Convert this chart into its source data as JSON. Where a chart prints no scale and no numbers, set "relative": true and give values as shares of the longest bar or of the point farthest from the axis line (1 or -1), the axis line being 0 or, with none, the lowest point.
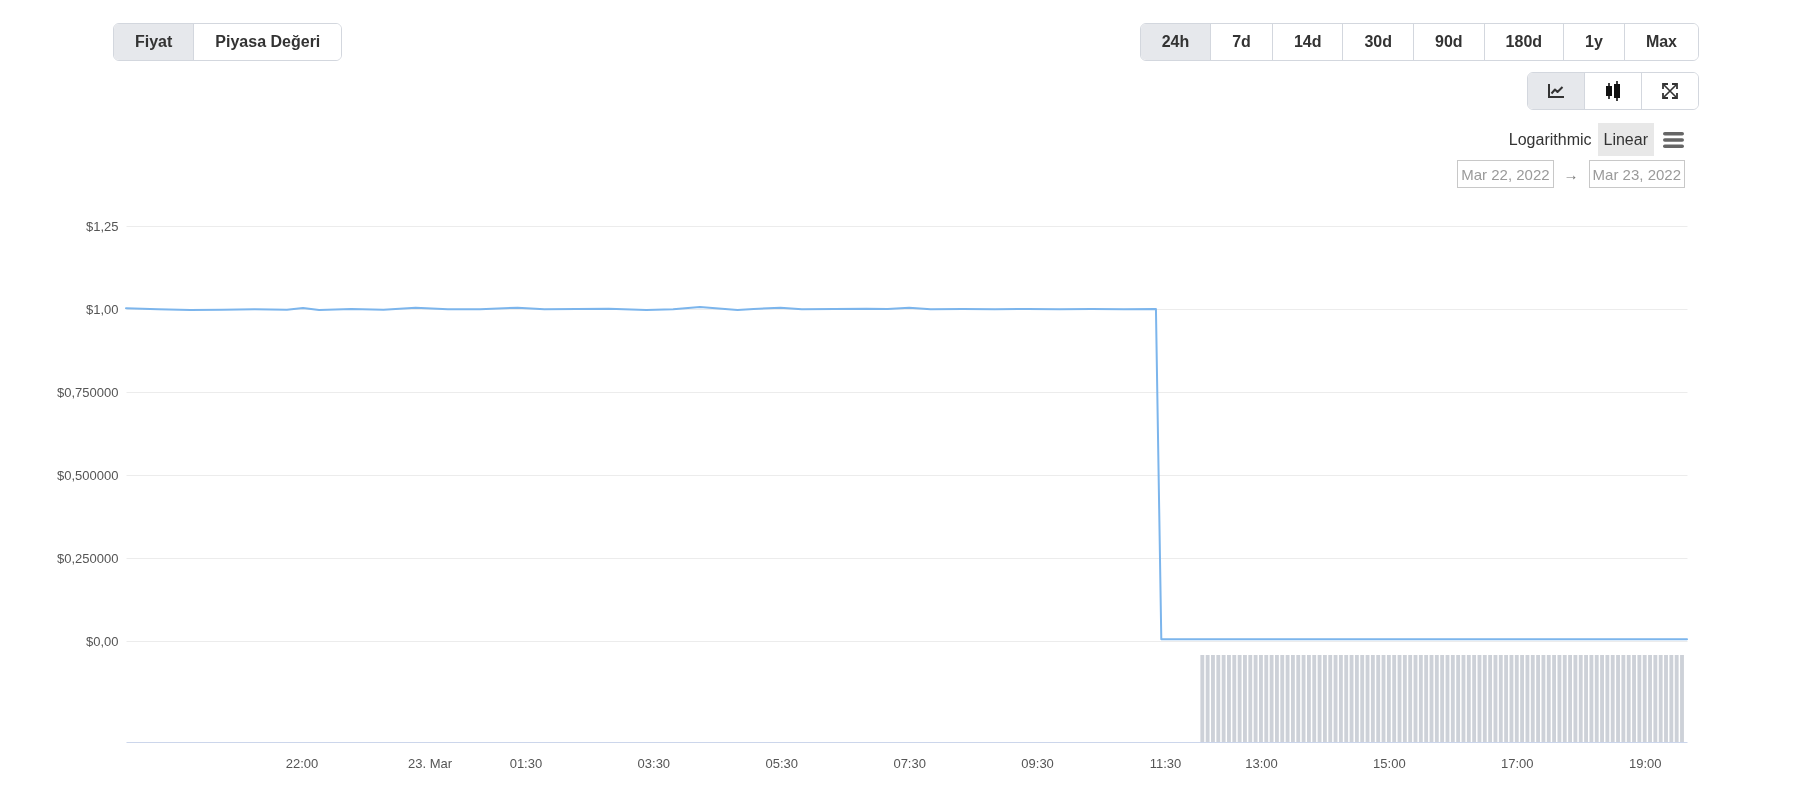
{
  "chart_data": [
    {
      "type": "line",
      "x": [
        "2022-03-22T19:20",
        "2022-03-22T19:50",
        "2022-03-22T20:20",
        "2022-03-22T20:50",
        "2022-03-22T21:20",
        "2022-03-22T21:50",
        "2022-03-22T22:05",
        "2022-03-22T22:20",
        "2022-03-22T22:50",
        "2022-03-22T23:20",
        "2022-03-22T23:50",
        "2022-03-23T00:20",
        "2022-03-23T00:50",
        "2022-03-23T01:25",
        "2022-03-23T01:50",
        "2022-03-23T02:20",
        "2022-03-23T02:50",
        "2022-03-23T03:25",
        "2022-03-23T03:50",
        "2022-03-23T04:15",
        "2022-03-23T04:50",
        "2022-03-23T05:05",
        "2022-03-23T05:30",
        "2022-03-23T05:50",
        "2022-03-23T06:20",
        "2022-03-23T06:50",
        "2022-03-23T07:10",
        "2022-03-23T07:30",
        "2022-03-23T07:50",
        "2022-03-23T08:20",
        "2022-03-23T08:50",
        "2022-03-23T09:20",
        "2022-03-23T09:50",
        "2022-03-23T10:20",
        "2022-03-23T10:50",
        "2022-03-23T11:20",
        "2022-03-23T11:25",
        "2022-03-23T13:00",
        "2022-03-23T15:00",
        "2022-03-23T17:00",
        "2022-03-23T19:35"
      ],
      "values": [
        1.002,
        0.999,
        0.997,
        0.998,
        0.999,
        0.998,
        1.003,
        0.997,
        1,
        0.998,
        1.004,
        0.999,
        0.999,
        1.004,
        0.999,
        1,
        1.001,
        0.997,
        0.999,
        1.006,
        0.997,
        1,
        1.004,
        0.999,
        1,
        1.001,
        1,
        1.004,
        0.999,
        1,
        0.999,
        1,
        0.999,
        1,
        0.999,
        1,
        0.005,
        0.005,
        0.005,
        0.005,
        0.005
      ],
      "color": "#7cb5ec",
      "xlim": [
        "2022-03-22T19:20",
        "2022-03-23T19:35"
      ],
      "ylim": [
        0,
        1.25
      ],
      "yticks": [
        {
          "value": 0,
          "label": "$0,00"
        },
        {
          "value": 0.25,
          "label": "$0,250000"
        },
        {
          "value": 0.5,
          "label": "$0,500000"
        },
        {
          "value": 0.75,
          "label": "$0,750000"
        },
        {
          "value": 1,
          "label": "$1,00"
        },
        {
          "value": 1.25,
          "label": "$1,25"
        }
      ],
      "grid": "y",
      "tick_labels": "y",
      "annotations": [
        "Fiyat",
        "Piyasa Değeri",
        "24h",
        "7d",
        "14d",
        "30d",
        "90d",
        "180d",
        "1y",
        "Max",
        "Logarithmic",
        "Linear",
        "Mar 22, 2022",
        "→",
        "Mar 23, 2022"
      ]
    },
    {
      "type": "bar",
      "relative": true,
      "x": [
        "2022-03-23T12:05",
        "2022-03-23T12:10",
        "2022-03-23T12:15",
        "2022-03-23T12:20",
        "2022-03-23T12:25",
        "2022-03-23T12:30",
        "2022-03-23T12:35",
        "2022-03-23T12:40",
        "2022-03-23T12:45",
        "2022-03-23T12:50",
        "2022-03-23T12:55",
        "2022-03-23T13:00",
        "2022-03-23T13:05",
        "2022-03-23T13:10",
        "2022-03-23T13:15",
        "2022-03-23T13:20",
        "2022-03-23T13:25",
        "2022-03-23T13:30",
        "2022-03-23T13:35",
        "2022-03-23T13:40",
        "2022-03-23T13:45",
        "2022-03-23T13:50",
        "2022-03-23T13:55",
        "2022-03-23T14:00",
        "2022-03-23T14:05",
        "2022-03-23T14:10",
        "2022-03-23T14:15",
        "2022-03-23T14:20",
        "2022-03-23T14:25",
        "2022-03-23T14:30",
        "2022-03-23T14:35",
        "2022-03-23T14:40",
        "2022-03-23T14:45",
        "2022-03-23T14:50",
        "2022-03-23T14:55",
        "2022-03-23T15:00",
        "2022-03-23T15:05",
        "2022-03-23T15:10",
        "2022-03-23T15:15",
        "2022-03-23T15:20",
        "2022-03-23T15:25",
        "2022-03-23T15:30",
        "2022-03-23T15:35",
        "2022-03-23T15:40",
        "2022-03-23T15:45",
        "2022-03-23T15:50",
        "2022-03-23T15:55",
        "2022-03-23T16:00",
        "2022-03-23T16:05",
        "2022-03-23T16:10",
        "2022-03-23T16:15",
        "2022-03-23T16:20",
        "2022-03-23T16:25",
        "2022-03-23T16:30",
        "2022-03-23T16:35",
        "2022-03-23T16:40",
        "2022-03-23T16:45",
        "2022-03-23T16:50",
        "2022-03-23T16:55",
        "2022-03-23T17:00",
        "2022-03-23T17:05",
        "2022-03-23T17:10",
        "2022-03-23T17:15",
        "2022-03-23T17:20",
        "2022-03-23T17:25",
        "2022-03-23T17:30",
        "2022-03-23T17:35",
        "2022-03-23T17:40",
        "2022-03-23T17:45",
        "2022-03-23T17:50",
        "2022-03-23T17:55",
        "2022-03-23T18:00",
        "2022-03-23T18:05",
        "2022-03-23T18:10",
        "2022-03-23T18:15",
        "2022-03-23T18:20",
        "2022-03-23T18:25",
        "2022-03-23T18:30",
        "2022-03-23T18:35",
        "2022-03-23T18:40",
        "2022-03-23T18:45",
        "2022-03-23T18:50",
        "2022-03-23T18:55",
        "2022-03-23T19:00",
        "2022-03-23T19:05",
        "2022-03-23T19:10",
        "2022-03-23T19:15",
        "2022-03-23T19:20",
        "2022-03-23T19:25",
        "2022-03-23T19:30",
        "2022-03-23T19:35"
      ],
      "values": [
        1,
        1,
        1,
        1,
        1,
        1,
        1,
        1,
        1,
        1,
        1,
        1,
        1,
        1,
        1,
        1,
        1,
        1,
        1,
        1,
        1,
        1,
        1,
        1,
        1,
        1,
        1,
        1,
        1,
        1,
        1,
        1,
        1,
        1,
        1,
        1,
        1,
        1,
        1,
        1,
        1,
        1,
        1,
        1,
        1,
        1,
        1,
        1,
        1,
        1,
        1,
        1,
        1,
        1,
        1,
        1,
        1,
        1,
        1,
        1,
        1,
        1,
        1,
        1,
        1,
        1,
        1,
        1,
        1,
        1,
        1,
        1,
        1,
        1,
        1,
        1,
        1,
        1,
        1,
        1,
        1,
        1,
        1,
        1,
        1,
        1,
        1,
        1,
        1,
        1,
        1
      ],
      "color": "#cdd1d8",
      "xlim": [
        "2022-03-22T19:20",
        "2022-03-23T19:35"
      ],
      "xticks": [
        {
          "value": "2022-03-22T22:00",
          "label": "22:00"
        },
        {
          "value": "2022-03-23T00:00",
          "label": "23. Mar"
        },
        {
          "value": "2022-03-23T01:30",
          "label": "01:30"
        },
        {
          "value": "2022-03-23T03:30",
          "label": "03:30"
        },
        {
          "value": "2022-03-23T05:30",
          "label": "05:30"
        },
        {
          "value": "2022-03-23T07:30",
          "label": "07:30"
        },
        {
          "value": "2022-03-23T09:30",
          "label": "09:30"
        },
        {
          "value": "2022-03-23T11:30",
          "label": "11:30"
        },
        {
          "value": "2022-03-23T13:00",
          "label": "13:00"
        },
        {
          "value": "2022-03-23T15:00",
          "label": "15:00"
        },
        {
          "value": "2022-03-23T17:00",
          "label": "17:00"
        },
        {
          "value": "2022-03-23T19:00",
          "label": "19:00"
        }
      ]
    }
  ]
}
